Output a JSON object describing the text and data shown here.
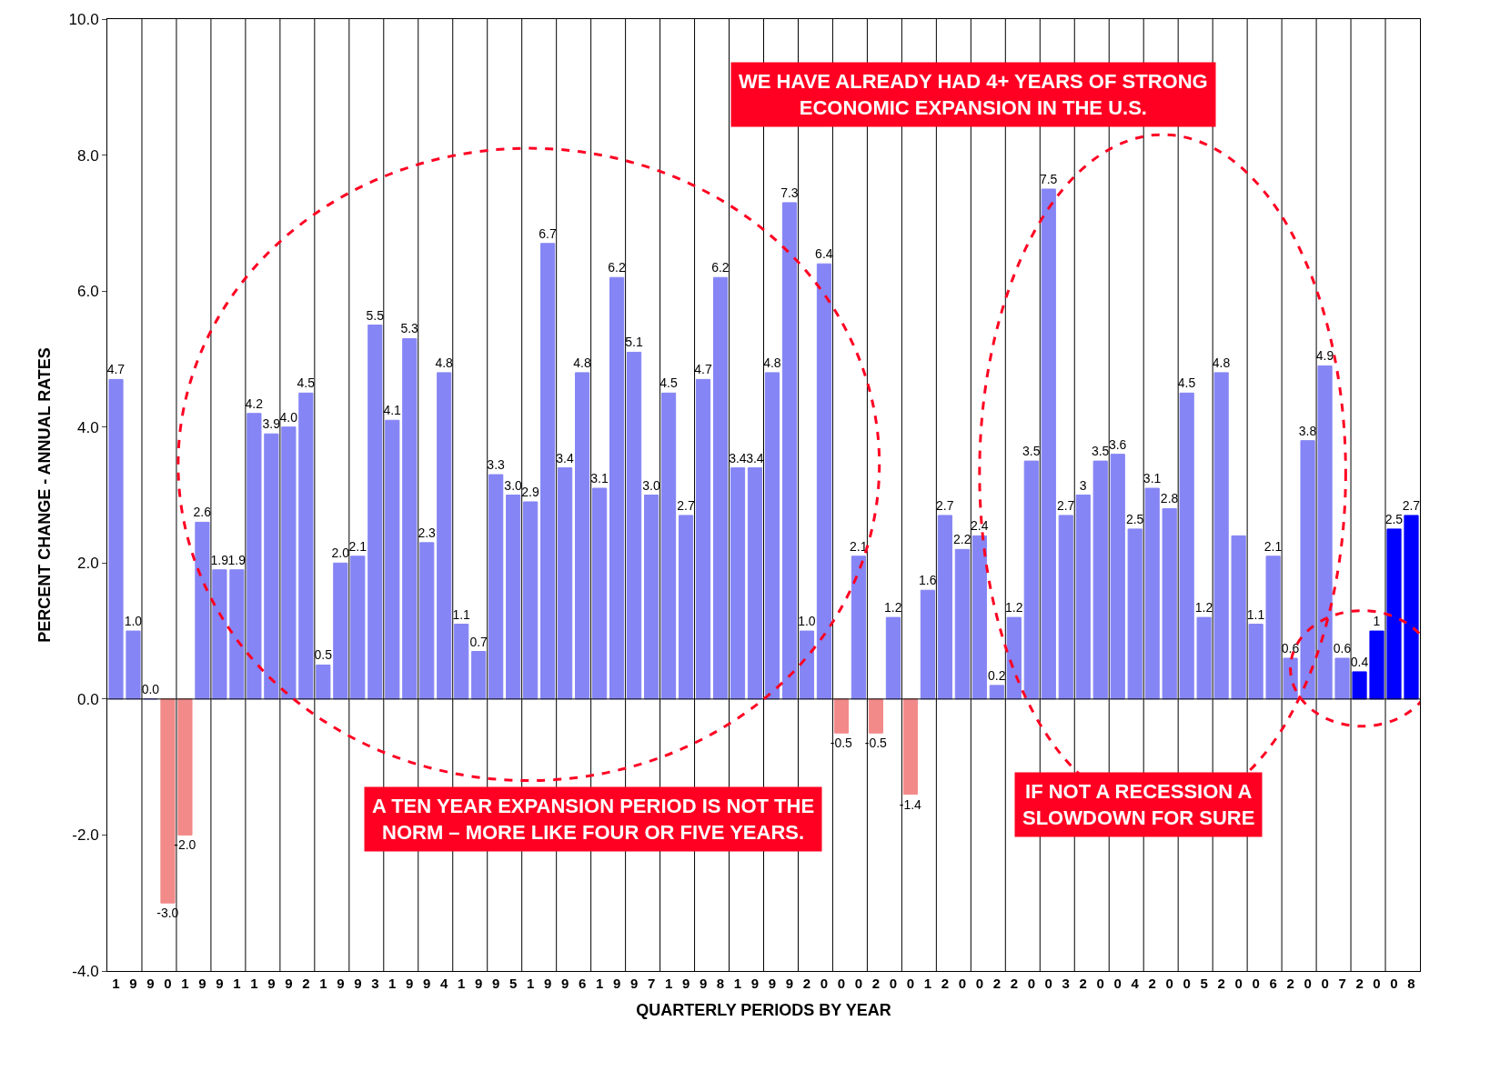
{
  "chart_data": {
    "type": "bar",
    "xlabel": "QUARTERLY PERIODS BY YEAR",
    "ylabel": "PERCENT CHANGE - ANNUAL RATES",
    "categories": [
      "1",
      "9",
      "9",
      "0",
      "1",
      "9",
      "9",
      "1",
      "1",
      "9",
      "9",
      "2",
      "1",
      "9",
      "9",
      "3",
      "1",
      "9",
      "9",
      "4",
      "1",
      "9",
      "9",
      "5",
      "1",
      "9",
      "9",
      "6",
      "1",
      "9",
      "9",
      "7",
      "1",
      "9",
      "9",
      "8",
      "1",
      "9",
      "9",
      "9",
      "2",
      "0",
      "0",
      "0",
      "2",
      "0",
      "0",
      "1",
      "2",
      "0",
      "0",
      "2",
      "2",
      "0",
      "0",
      "3",
      "2",
      "0",
      "0",
      "4",
      "2",
      "0",
      "0",
      "5",
      "2",
      "0",
      "0",
      "6",
      "2",
      "0",
      "0",
      "7",
      "2",
      "0",
      "0",
      "8"
    ],
    "values": [
      4.7,
      1.0,
      0.0,
      -3.0,
      -2.0,
      2.6,
      1.9,
      1.9,
      4.2,
      3.9,
      4.0,
      4.5,
      0.5,
      2.0,
      2.1,
      5.5,
      4.1,
      5.3,
      2.3,
      4.8,
      1.1,
      0.7,
      3.3,
      3.0,
      2.9,
      6.7,
      3.4,
      4.8,
      3.1,
      6.2,
      5.1,
      3.0,
      4.5,
      2.7,
      4.7,
      6.2,
      3.4,
      3.4,
      4.8,
      7.3,
      1.0,
      6.4,
      -0.5,
      2.1,
      -0.5,
      1.2,
      -1.4,
      1.6,
      2.7,
      2.2,
      2.4,
      0.2,
      1.2,
      3.5,
      7.5,
      2.7,
      3.0,
      3.5,
      3.6,
      2.5,
      3.1,
      2.8,
      4.5,
      1.2,
      4.8,
      2.4,
      1.1,
      2.1,
      0.6,
      3.8,
      4.9,
      0.6,
      0.4,
      1.0,
      2.5,
      2.7
    ],
    "value_labels": [
      "4.7",
      "1.0",
      "0.0",
      "-3.0",
      "-2.0",
      "2.6",
      "1.9",
      "1.9",
      "4.2",
      "3.9",
      "4.0",
      "4.5",
      "0.5",
      "2.0",
      "2.1",
      "5.5",
      "4.1",
      "5.3",
      "2.3",
      "4.8",
      "1.1",
      "0.7",
      "3.3",
      "3.0",
      "2.9",
      "6.7",
      "3.4",
      "4.8",
      "3.1",
      "6.2",
      "5.1",
      "3.0",
      "4.5",
      "2.7",
      "4.7",
      "6.2",
      "3.4",
      "3.4",
      "4.8",
      "7.3",
      "1.0",
      "6.4",
      "-0.5",
      "2.1",
      "-0.5",
      "1.2",
      "-1.4",
      "1.6",
      "2.7",
      "2.2",
      "2.4",
      "0.2",
      "1.2",
      "3.5",
      "7.5",
      "2.7",
      "3",
      "3.5",
      "3.6",
      "2.5",
      "3.1",
      "2.8",
      "4.5",
      "1.2",
      "4.8",
      null,
      "1.1",
      "2.1",
      "0.6",
      "3.8",
      "4.9",
      "0.6",
      "0.4",
      "1",
      "2.5",
      "2.7"
    ],
    "colors": [
      "#8585f5",
      "#8585f5",
      "#8585f5",
      "#f28a8a",
      "#f28a8a",
      "#8585f5",
      "#8585f5",
      "#8585f5",
      "#8585f5",
      "#8585f5",
      "#8585f5",
      "#8585f5",
      "#8585f5",
      "#8585f5",
      "#8585f5",
      "#8585f5",
      "#8585f5",
      "#8585f5",
      "#8585f5",
      "#8585f5",
      "#8585f5",
      "#8585f5",
      "#8585f5",
      "#8585f5",
      "#8585f5",
      "#8585f5",
      "#8585f5",
      "#8585f5",
      "#8585f5",
      "#8585f5",
      "#8585f5",
      "#8585f5",
      "#8585f5",
      "#8585f5",
      "#8585f5",
      "#8585f5",
      "#8585f5",
      "#8585f5",
      "#8585f5",
      "#8585f5",
      "#8585f5",
      "#8585f5",
      "#f28a8a",
      "#8585f5",
      "#f28a8a",
      "#8585f5",
      "#f28a8a",
      "#8585f5",
      "#8585f5",
      "#8585f5",
      "#8585f5",
      "#8585f5",
      "#8585f5",
      "#8585f5",
      "#8585f5",
      "#8585f5",
      "#8585f5",
      "#8585f5",
      "#8585f5",
      "#8585f5",
      "#8585f5",
      "#8585f5",
      "#8585f5",
      "#8585f5",
      "#8585f5",
      "#8585f5",
      "#8585f5",
      "#8585f5",
      "#8585f5",
      "#8585f5",
      "#8585f5",
      "#8585f5",
      "#0000ff",
      "#0000ff",
      "#0000ff",
      "#0000ff"
    ],
    "ylim": [
      -4,
      10
    ],
    "yticks": [
      {
        "value": -4,
        "label": "-4.0"
      },
      {
        "value": -2,
        "label": "-2.0"
      },
      {
        "value": 0,
        "label": "0.0"
      },
      {
        "value": 2,
        "label": "2.0"
      },
      {
        "value": 4,
        "label": "4.0"
      },
      {
        "value": 6,
        "label": "6.0"
      },
      {
        "value": 8,
        "label": "8.0"
      },
      {
        "value": 10,
        "label": "10.0"
      }
    ],
    "grid": "x",
    "ref_lines": [
      {
        "axis": "y",
        "value": 0,
        "color": "#000000"
      }
    ],
    "annotations": [
      "WE HAVE ALREADY HAD 4+ YEARS OF STRONG\nECONOMIC EXPANSION IN THE U.S.",
      "A TEN YEAR EXPANSION PERIOD IS NOT THE\nNORM – MORE LIKE FOUR OR FIVE YEARS.",
      "IF NOT A RECESSION A\nSLOWDOWN FOR SURE"
    ]
  }
}
